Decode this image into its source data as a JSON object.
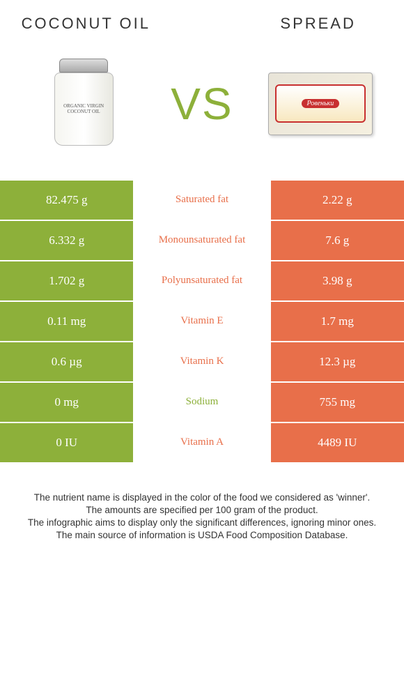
{
  "products": {
    "left": {
      "title": "COCONUT OIL",
      "jar_label": "ORGANIC VIRGIN COCONUT OIL"
    },
    "right": {
      "title": "SPREAD",
      "brand": "Ровеньки"
    }
  },
  "vs_label": "vs",
  "colors": {
    "left": "#8db03a",
    "right": "#e86f4a",
    "background": "#ffffff"
  },
  "rows": [
    {
      "left": "82.475 g",
      "label": "Saturated fat",
      "right": "2.22 g",
      "winner": "left"
    },
    {
      "left": "6.332 g",
      "label": "Monounsaturated fat",
      "right": "7.6 g",
      "winner": "left"
    },
    {
      "left": "1.702 g",
      "label": "Polyunsaturated fat",
      "right": "3.98 g",
      "winner": "left"
    },
    {
      "left": "0.11 mg",
      "label": "Vitamin E",
      "right": "1.7 mg",
      "winner": "left"
    },
    {
      "left": "0.6 µg",
      "label": "Vitamin K",
      "right": "12.3 µg",
      "winner": "left"
    },
    {
      "left": "0 mg",
      "label": "Sodium",
      "right": "755 mg",
      "winner": "right"
    },
    {
      "left": "0 IU",
      "label": "Vitamin A",
      "right": "4489 IU",
      "winner": "left"
    }
  ],
  "footer": {
    "line1": "The nutrient name is displayed in the color of the food we considered as 'winner'.",
    "line2": "The amounts are specified per 100 gram of the product.",
    "line3": "The infographic aims to display only the significant differences, ignoring minor ones.",
    "line4": "The main source of information is USDA Food Composition Database."
  }
}
